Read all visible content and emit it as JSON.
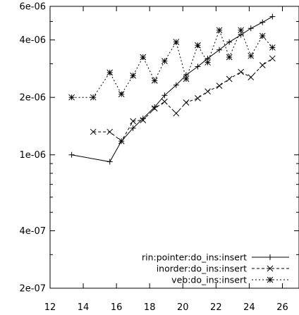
{
  "chart_data": {
    "type": "line",
    "title": "",
    "xlabel": "",
    "ylabel": "",
    "x_scale": "linear",
    "y_scale": "log",
    "xlim": [
      12,
      27
    ],
    "ylim": [
      2e-07,
      6e-06
    ],
    "x_ticks": [
      12,
      14,
      16,
      18,
      20,
      22,
      24,
      26
    ],
    "x_tick_labels": [
      "12",
      "14",
      "16",
      "18",
      "20",
      "22",
      "24",
      "26"
    ],
    "y_ticks": [
      2e-07,
      4e-07,
      1e-06,
      2e-06,
      4e-06,
      6e-06
    ],
    "y_tick_labels": [
      "2e-07",
      "4e-07",
      "1e-06",
      "2e-06",
      "4e-06",
      "6e-06"
    ],
    "grid": false,
    "legend_position": "bottom-right",
    "series": [
      {
        "name": "rin:pointer:do_ins:insert",
        "marker": "plus",
        "line_style": "solid",
        "color": "#000000",
        "x": [
          13.3,
          15.6,
          16.3,
          17.0,
          17.6,
          18.3,
          18.9,
          19.6,
          20.2,
          20.9,
          21.5,
          22.2,
          22.8,
          23.5,
          24.1,
          24.8,
          25.4
        ],
        "y": [
          1e-06,
          9.2e-07,
          1.18e-06,
          1.38e-06,
          1.55e-06,
          1.78e-06,
          2.05e-06,
          2.32e-06,
          2.62e-06,
          2.9e-06,
          3.2e-06,
          3.55e-06,
          3.9e-06,
          4.25e-06,
          4.6e-06,
          4.95e-06,
          5.3e-06
        ]
      },
      {
        "name": "inorder:do_ins:insert",
        "marker": "x",
        "line_style": "dashed",
        "color": "#000000",
        "x": [
          14.6,
          15.6,
          16.3,
          17.0,
          17.6,
          18.3,
          18.9,
          19.6,
          20.2,
          20.9,
          21.5,
          22.2,
          22.8,
          23.5,
          24.1,
          24.8,
          25.4
        ],
        "y": [
          1.32e-06,
          1.32e-06,
          1.18e-06,
          1.5e-06,
          1.52e-06,
          1.75e-06,
          1.9e-06,
          1.65e-06,
          1.88e-06,
          1.98e-06,
          2.15e-06,
          2.3e-06,
          2.5e-06,
          2.72e-06,
          2.55e-06,
          2.95e-06,
          3.2e-06
        ]
      },
      {
        "name": "veb:do_ins:insert",
        "marker": "star",
        "line_style": "dotted",
        "color": "#000000",
        "x": [
          13.3,
          14.6,
          15.6,
          16.3,
          17.0,
          17.6,
          18.3,
          18.9,
          19.6,
          20.2,
          20.9,
          21.5,
          22.2,
          22.8,
          23.5,
          24.1,
          24.8,
          25.4
        ],
        "y": [
          2e-06,
          2e-06,
          2.7e-06,
          2.08e-06,
          2.6e-06,
          3.25e-06,
          2.45e-06,
          3.1e-06,
          3.9e-06,
          2.5e-06,
          3.75e-06,
          3.05e-06,
          4.5e-06,
          3.25e-06,
          4.5e-06,
          3.3e-06,
          4.2e-06,
          3.65e-06
        ]
      }
    ]
  }
}
